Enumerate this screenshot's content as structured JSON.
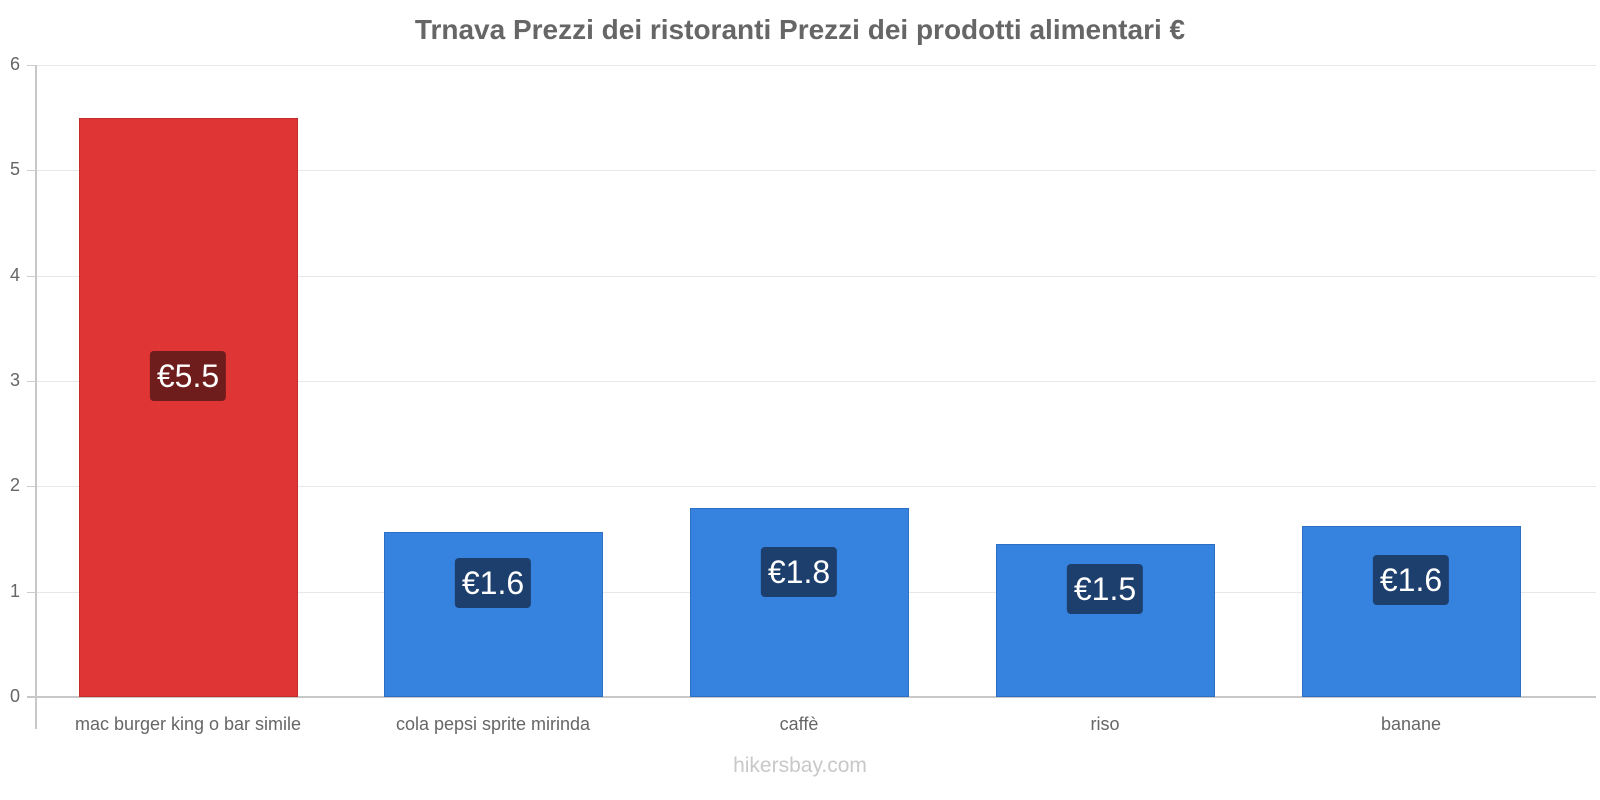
{
  "chart_data": {
    "type": "bar",
    "title": "Trnava Prezzi dei ristoranti Prezzi dei prodotti alimentari €",
    "xlabel": "",
    "ylabel": "",
    "ylim": [
      0,
      6
    ],
    "yticks": [
      "0",
      "1",
      "2",
      "3",
      "4",
      "5",
      "6"
    ],
    "grid": true,
    "legend": null,
    "categories": [
      "mac burger king o bar simile",
      "cola pepsi sprite mirinda",
      "caffè",
      "riso",
      "banane"
    ],
    "values": [
      5.5,
      1.57,
      1.79,
      1.45,
      1.62
    ],
    "data_labels": [
      "€5.5",
      "€1.6",
      "€1.8",
      "€1.5",
      "€1.6"
    ],
    "colors": [
      "#e03535",
      "#3583de",
      "#3583de",
      "#3583de",
      "#3583de"
    ],
    "label_colors": [
      "#6e1c1c",
      "#1d3f6e",
      "#1d3f6e",
      "#1d3f6e",
      "#1d3f6e"
    ]
  },
  "watermark": "hikersbay.com"
}
